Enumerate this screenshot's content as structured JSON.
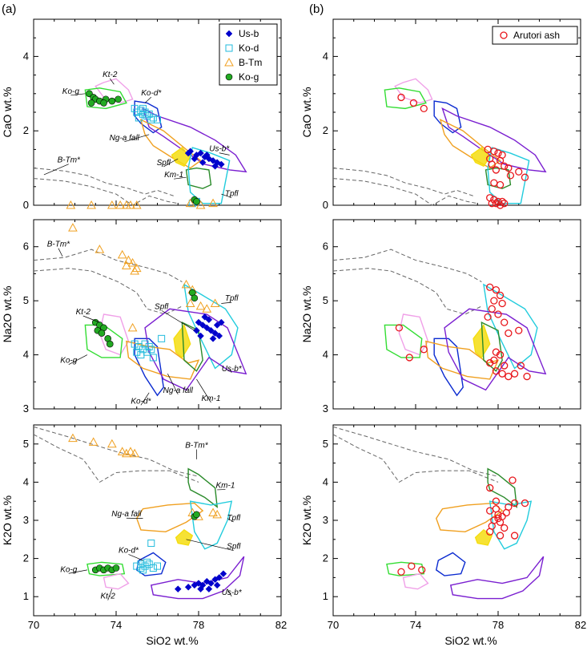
{
  "figure": {
    "panel_labels": [
      "(a)",
      "(b)"
    ],
    "xlabel": "SiO2 wt.%",
    "xticks": [
      "70",
      "74",
      "78",
      "82"
    ]
  },
  "legend_a": [
    {
      "name": "Us-b",
      "marker": "diamond",
      "color": "#0000cc"
    },
    {
      "name": "Ko-d",
      "marker": "square",
      "color": "#22bbdd"
    },
    {
      "name": "B-Tm",
      "marker": "triangle",
      "color": "#f0a020"
    },
    {
      "name": "Ko-g",
      "marker": "circle",
      "color": "#22aa22"
    }
  ],
  "legend_b": [
    {
      "name": "Arutori ash",
      "marker": "circle",
      "color": "#e8161b"
    }
  ],
  "annotations": {
    "cao": [
      "Kt-2",
      "Ko-d*",
      "Ko-g",
      "Ng-a fall",
      "Us-b*",
      "B-Tm*",
      "Spfl",
      "Km-1",
      "Tpfl"
    ],
    "na2o": [
      "B-Tm*",
      "Tpfl",
      "Kt-2",
      "Spfl",
      "Ko-g",
      "Ng-a fall",
      "Us-b*",
      "Ko-d*",
      "Km-1"
    ],
    "k2o": [
      "B-Tm*",
      "Km-1",
      "Ng-a fall",
      "Tpfl",
      "Spfl",
      "Ko-d*",
      "Ko-g",
      "Kt-2",
      "Us-b*"
    ]
  },
  "colors": {
    "Us-b": "#0000cc",
    "Ko-d": "#22bbdd",
    "B-Tm": "#f0a020",
    "Ko-g": "#22aa22",
    "Kt-2": "#f0a0e8",
    "Ng-a fall": "#f0a020",
    "Spfl": "#f5dd10",
    "Km-1": "#2a8a2a",
    "Tpfl": "#22ccdd",
    "Us-b*": "#7a1fd0",
    "Ko-d*": "#0a2ad0",
    "Ko-g field": "#33dd33",
    "Arutori ash": "#e8161b"
  },
  "chart_data": [
    {
      "panel": "(a)",
      "type": "scatter",
      "ylabel": "CaO wt.%",
      "xlim": [
        70,
        82
      ],
      "ylim": [
        0,
        5
      ],
      "yticks": [
        "0",
        "2",
        "4"
      ],
      "series": [
        {
          "name": "Us-b",
          "points": [
            [
              77.6,
              1.45
            ],
            [
              77.9,
              1.35
            ],
            [
              78.1,
              1.4
            ],
            [
              78.3,
              1.3
            ],
            [
              78.5,
              1.25
            ],
            [
              78.7,
              1.2
            ],
            [
              78.2,
              1.15
            ],
            [
              78.9,
              1.15
            ],
            [
              79.1,
              1.1
            ],
            [
              77.8,
              1.25
            ],
            [
              78.4,
              1.35
            ],
            [
              78.8,
              1.05
            ],
            [
              77.5,
              1.4
            ]
          ]
        },
        {
          "name": "Ko-d",
          "points": [
            [
              74.9,
              2.6
            ],
            [
              75.0,
              2.5
            ],
            [
              75.2,
              2.55
            ],
            [
              75.3,
              2.45
            ],
            [
              75.4,
              2.5
            ],
            [
              75.5,
              2.4
            ],
            [
              75.6,
              2.45
            ],
            [
              75.1,
              2.35
            ],
            [
              75.7,
              2.3
            ],
            [
              75.8,
              2.35
            ],
            [
              76.0,
              2.3
            ],
            [
              75.3,
              2.6
            ],
            [
              77.7,
              0.05
            ],
            [
              77.9,
              0.1
            ]
          ]
        },
        {
          "name": "B-Tm",
          "points": [
            [
              71.8,
              0.0
            ],
            [
              72.8,
              0.0
            ],
            [
              73.8,
              0.0
            ],
            [
              74.2,
              0.0
            ],
            [
              74.5,
              0.0
            ],
            [
              74.7,
              0.0
            ],
            [
              75.0,
              0.0
            ],
            [
              77.6,
              0.05
            ],
            [
              78.1,
              0.0
            ],
            [
              78.7,
              0.05
            ]
          ]
        },
        {
          "name": "Ko-g",
          "points": [
            [
              72.7,
              3.0
            ],
            [
              72.9,
              2.9
            ],
            [
              73.0,
              2.85
            ],
            [
              73.2,
              2.8
            ],
            [
              73.5,
              2.85
            ],
            [
              73.8,
              2.8
            ],
            [
              74.1,
              2.85
            ],
            [
              73.4,
              2.75
            ],
            [
              72.8,
              2.75
            ],
            [
              77.8,
              0.15
            ],
            [
              77.9,
              0.1
            ]
          ]
        }
      ],
      "fields": [
        "Kt-2",
        "Ko-d*",
        "Ko-g",
        "Ng-a fall",
        "Us-b*",
        "B-Tm*",
        "Spfl",
        "Km-1",
        "Tpfl"
      ]
    },
    {
      "panel": "(a)",
      "type": "scatter",
      "ylabel": "Na2O wt.%",
      "xlim": [
        70,
        82
      ],
      "ylim": [
        3,
        6.5
      ],
      "yticks": [
        "3",
        "4",
        "5",
        "6"
      ],
      "series": [
        {
          "name": "Us-b",
          "points": [
            [
              78.0,
              4.6
            ],
            [
              78.2,
              4.55
            ],
            [
              78.4,
              4.5
            ],
            [
              78.6,
              4.45
            ],
            [
              78.8,
              4.4
            ],
            [
              79.0,
              4.35
            ],
            [
              78.3,
              4.7
            ],
            [
              78.5,
              4.65
            ],
            [
              77.9,
              4.45
            ],
            [
              78.7,
              4.3
            ],
            [
              79.1,
              4.6
            ],
            [
              78.1,
              4.35
            ],
            [
              78.9,
              4.55
            ]
          ]
        },
        {
          "name": "Ko-d",
          "points": [
            [
              74.9,
              4.2
            ],
            [
              75.1,
              4.15
            ],
            [
              75.3,
              4.1
            ],
            [
              75.4,
              4.2
            ],
            [
              75.5,
              4.05
            ],
            [
              75.2,
              4.0
            ],
            [
              75.6,
              4.15
            ],
            [
              75.7,
              4.1
            ],
            [
              75.0,
              4.05
            ],
            [
              75.8,
              3.95
            ],
            [
              76.2,
              4.3
            ]
          ]
        },
        {
          "name": "B-Tm",
          "points": [
            [
              71.9,
              6.35
            ],
            [
              73.2,
              5.95
            ],
            [
              74.3,
              5.85
            ],
            [
              74.6,
              5.75
            ],
            [
              74.8,
              5.7
            ],
            [
              75.0,
              5.6
            ],
            [
              74.5,
              5.65
            ],
            [
              74.9,
              5.55
            ],
            [
              77.4,
              5.3
            ],
            [
              77.7,
              5.2
            ],
            [
              78.1,
              4.9
            ],
            [
              77.6,
              4.95
            ],
            [
              78.4,
              4.85
            ],
            [
              78.8,
              4.95
            ],
            [
              74.8,
              4.5
            ]
          ]
        },
        {
          "name": "Ko-g",
          "points": [
            [
              73.0,
              4.6
            ],
            [
              73.2,
              4.55
            ],
            [
              73.4,
              4.5
            ],
            [
              73.1,
              4.45
            ],
            [
              73.6,
              4.3
            ],
            [
              73.7,
              4.2
            ],
            [
              73.3,
              4.4
            ],
            [
              77.7,
              5.15
            ],
            [
              77.8,
              5.05
            ]
          ]
        }
      ],
      "fields": [
        "B-Tm*",
        "Tpfl",
        "Kt-2",
        "Spfl",
        "Ko-g",
        "Ng-a fall",
        "Us-b*",
        "Ko-d*",
        "Km-1"
      ]
    },
    {
      "panel": "(a)",
      "type": "scatter",
      "ylabel": "K2O wt.%",
      "xlim": [
        70,
        82
      ],
      "ylim": [
        0.5,
        5.5
      ],
      "yticks": [
        "1",
        "2",
        "3",
        "4",
        "5"
      ],
      "series": [
        {
          "name": "Us-b",
          "points": [
            [
              77.5,
              1.25
            ],
            [
              77.8,
              1.3
            ],
            [
              78.0,
              1.35
            ],
            [
              78.2,
              1.3
            ],
            [
              78.4,
              1.4
            ],
            [
              78.6,
              1.35
            ],
            [
              78.8,
              1.45
            ],
            [
              79.0,
              1.5
            ],
            [
              79.2,
              1.6
            ],
            [
              78.1,
              1.2
            ],
            [
              78.5,
              1.2
            ],
            [
              77.0,
              1.2
            ],
            [
              78.9,
              1.3
            ]
          ]
        },
        {
          "name": "Ko-d",
          "points": [
            [
              75.0,
              1.8
            ],
            [
              75.2,
              1.75
            ],
            [
              75.4,
              1.8
            ],
            [
              75.6,
              1.85
            ],
            [
              75.8,
              1.75
            ],
            [
              75.3,
              1.7
            ],
            [
              75.5,
              1.9
            ],
            [
              76.0,
              1.8
            ],
            [
              75.7,
              2.4
            ],
            [
              75.2,
              1.85
            ]
          ]
        },
        {
          "name": "B-Tm",
          "points": [
            [
              71.9,
              5.15
            ],
            [
              72.9,
              5.05
            ],
            [
              73.8,
              5.0
            ],
            [
              74.3,
              4.8
            ],
            [
              74.5,
              4.75
            ],
            [
              74.7,
              4.8
            ],
            [
              74.9,
              4.75
            ],
            [
              77.7,
              3.2
            ],
            [
              78.0,
              3.1
            ],
            [
              78.7,
              3.2
            ],
            [
              78.9,
              3.15
            ]
          ]
        },
        {
          "name": "Ko-g",
          "points": [
            [
              73.0,
              1.7
            ],
            [
              73.2,
              1.75
            ],
            [
              73.4,
              1.7
            ],
            [
              73.6,
              1.75
            ],
            [
              73.8,
              1.7
            ],
            [
              74.0,
              1.75
            ],
            [
              77.8,
              3.1
            ],
            [
              77.9,
              3.15
            ]
          ]
        }
      ],
      "fields": [
        "B-Tm*",
        "Km-1",
        "Ng-a fall",
        "Tpfl",
        "Spfl",
        "Ko-d*",
        "Ko-g",
        "Kt-2",
        "Us-b*"
      ]
    },
    {
      "panel": "(b)",
      "type": "scatter",
      "ylabel": "CaO wt.%",
      "xlim": [
        70,
        82
      ],
      "ylim": [
        0,
        5
      ],
      "yticks": [
        "0",
        "2",
        "4"
      ],
      "series": [
        {
          "name": "Arutori ash",
          "points": [
            [
              73.3,
              2.9
            ],
            [
              73.9,
              2.75
            ],
            [
              74.4,
              2.6
            ],
            [
              77.5,
              1.5
            ],
            [
              77.8,
              1.45
            ],
            [
              78.0,
              1.4
            ],
            [
              78.2,
              1.35
            ],
            [
              77.6,
              1.25
            ],
            [
              78.1,
              1.2
            ],
            [
              77.7,
              1.1
            ],
            [
              78.3,
              1.05
            ],
            [
              78.5,
              1.0
            ],
            [
              77.9,
              0.95
            ],
            [
              78.6,
              0.8
            ],
            [
              79.0,
              0.9
            ],
            [
              79.3,
              0.75
            ],
            [
              77.8,
              0.6
            ],
            [
              78.1,
              0.55
            ],
            [
              77.6,
              0.2
            ],
            [
              77.8,
              0.15
            ],
            [
              78.0,
              0.1
            ],
            [
              78.2,
              0.1
            ],
            [
              77.9,
              0.05
            ],
            [
              78.3,
              0.05
            ],
            [
              77.7,
              0.05
            ],
            [
              78.1,
              0.0
            ]
          ]
        }
      ],
      "fields": [
        "Kt-2",
        "Ko-d*",
        "Ko-g",
        "Ng-a fall",
        "Us-b*",
        "B-Tm*",
        "Spfl",
        "Km-1",
        "Tpfl"
      ]
    },
    {
      "panel": "(b)",
      "type": "scatter",
      "ylabel": "Na2O wt.%",
      "xlim": [
        70,
        82
      ],
      "ylim": [
        3,
        6.5
      ],
      "yticks": [
        "3",
        "4",
        "5",
        "6"
      ],
      "series": [
        {
          "name": "Arutori ash",
          "points": [
            [
              73.2,
              4.5
            ],
            [
              73.7,
              3.95
            ],
            [
              74.4,
              4.1
            ],
            [
              77.6,
              5.25
            ],
            [
              77.9,
              5.2
            ],
            [
              78.1,
              5.1
            ],
            [
              77.8,
              5.0
            ],
            [
              78.2,
              4.95
            ],
            [
              77.7,
              4.85
            ],
            [
              78.0,
              4.75
            ],
            [
              77.5,
              4.7
            ],
            [
              78.3,
              4.6
            ],
            [
              78.5,
              4.4
            ],
            [
              79.0,
              4.45
            ],
            [
              77.9,
              4.05
            ],
            [
              78.1,
              4.0
            ],
            [
              77.8,
              3.9
            ],
            [
              77.6,
              3.85
            ],
            [
              78.3,
              3.8
            ],
            [
              77.9,
              3.7
            ],
            [
              78.2,
              3.65
            ],
            [
              78.5,
              3.6
            ],
            [
              78.8,
              3.65
            ],
            [
              79.1,
              3.8
            ],
            [
              79.4,
              3.6
            ]
          ]
        }
      ],
      "fields": [
        "B-Tm*",
        "Tpfl",
        "Kt-2",
        "Spfl",
        "Ko-g",
        "Ng-a fall",
        "Us-b*",
        "Ko-d*",
        "Km-1"
      ]
    },
    {
      "panel": "(b)",
      "type": "scatter",
      "ylabel": "K2O wt.%",
      "xlim": [
        70,
        82
      ],
      "ylim": [
        0.5,
        5.5
      ],
      "yticks": [
        "1",
        "2",
        "3",
        "4",
        "5"
      ],
      "series": [
        {
          "name": "Arutori ash",
          "points": [
            [
              73.3,
              1.65
            ],
            [
              73.8,
              1.8
            ],
            [
              74.3,
              1.7
            ],
            [
              77.6,
              3.85
            ],
            [
              78.7,
              4.05
            ],
            [
              77.6,
              3.25
            ],
            [
              77.9,
              3.3
            ],
            [
              78.0,
              3.15
            ],
            [
              78.2,
              3.1
            ],
            [
              77.8,
              3.0
            ],
            [
              78.1,
              2.95
            ],
            [
              77.7,
              2.85
            ],
            [
              78.3,
              2.8
            ],
            [
              78.5,
              3.35
            ],
            [
              78.8,
              3.45
            ],
            [
              79.3,
              3.45
            ],
            [
              78.4,
              3.2
            ],
            [
              77.9,
              3.5
            ],
            [
              78.1,
              2.6
            ],
            [
              78.8,
              2.6
            ],
            [
              77.6,
              2.7
            ],
            [
              78.0,
              3.05
            ]
          ]
        }
      ],
      "fields": [
        "B-Tm*",
        "Km-1",
        "Ng-a fall",
        "Tpfl",
        "Spfl",
        "Ko-d*",
        "Ko-g",
        "Kt-2",
        "Us-b*"
      ]
    }
  ]
}
